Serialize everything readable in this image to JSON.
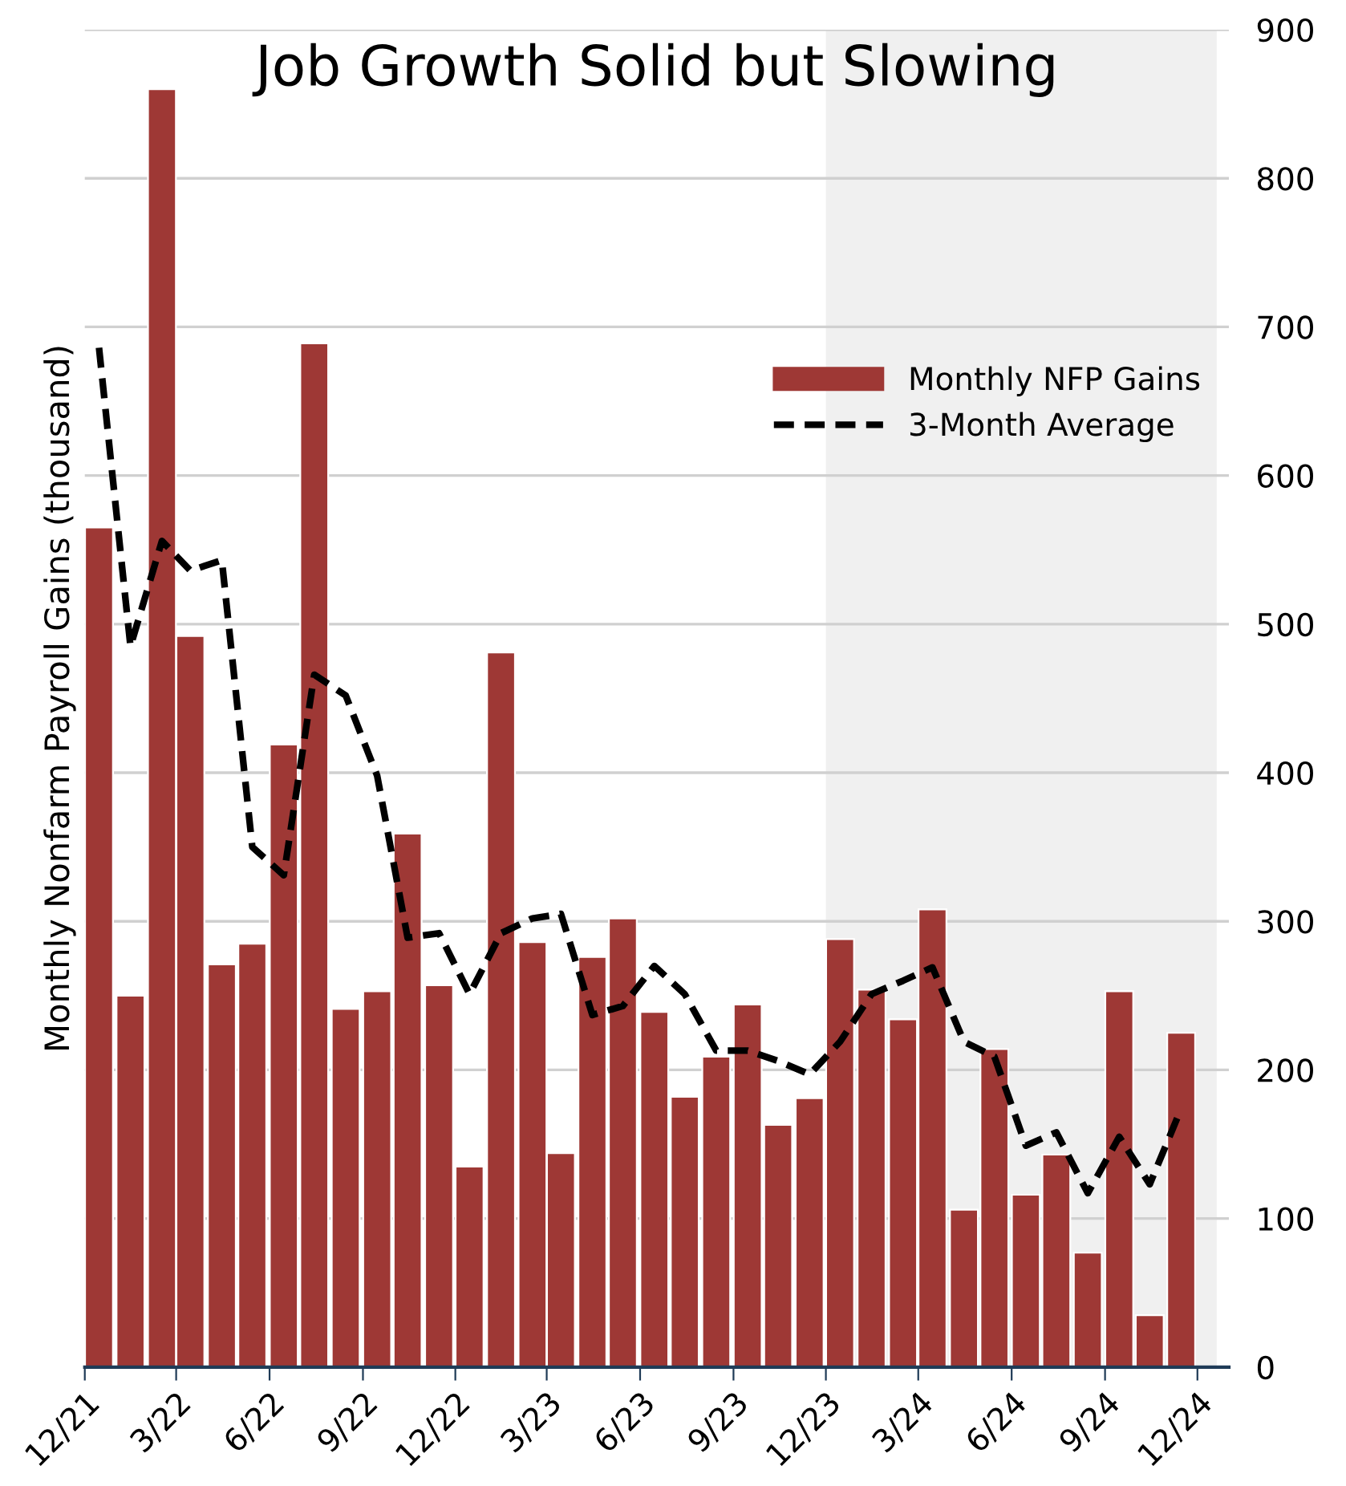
{
  "chart_data": {
    "type": "bar",
    "title": "Job Growth Solid but Slowing",
    "ylabel": "Monthly Nonfarm Payroll Gains (thousand)",
    "x": [
      "2021-12-15",
      "2022-01-15",
      "2022-02-15",
      "2022-03-15",
      "2022-04-15",
      "2022-05-15",
      "2022-06-15",
      "2022-07-15",
      "2022-08-15",
      "2022-09-15",
      "2022-10-15",
      "2022-11-15",
      "2022-12-15",
      "2023-01-15",
      "2023-02-15",
      "2023-03-15",
      "2023-04-15",
      "2023-05-15",
      "2023-06-15",
      "2023-07-15",
      "2023-08-15",
      "2023-09-15",
      "2023-10-15",
      "2023-11-15",
      "2023-12-15",
      "2024-01-15",
      "2024-02-15",
      "2024-03-15",
      "2024-04-15",
      "2024-05-15",
      "2024-06-15",
      "2024-07-15",
      "2024-08-15",
      "2024-09-15",
      "2024-10-15",
      "2024-11-15"
    ],
    "series": [
      {
        "name": "Monthly NFP Gains",
        "color": "#9e3835",
        "values": [
          565,
          250,
          860,
          492,
          271,
          285,
          419,
          689,
          241,
          253,
          359,
          257,
          135,
          481,
          286,
          144,
          276,
          302,
          239,
          182,
          209,
          244,
          163,
          181,
          288,
          254,
          234,
          308,
          106,
          214,
          116,
          143,
          77,
          253,
          35,
          225
        ]
      },
      {
        "name": "3-Month Average",
        "type": "line",
        "color": "#000000",
        "line_style": "dashed",
        "values": [
          686,
          485,
          556,
          536,
          543,
          350,
          331,
          466,
          452,
          398,
          289,
          292,
          251,
          292,
          302,
          305,
          237,
          243,
          270,
          251,
          213,
          213,
          206,
          197,
          219,
          251,
          260,
          269,
          219,
          209,
          149,
          158,
          117,
          155,
          123,
          174
        ]
      }
    ],
    "xlim": [
      "2021-12-01",
      "2025-01-01"
    ],
    "xticks": [
      {
        "value": "2021-12-01",
        "label": "12/21"
      },
      {
        "value": "2022-03-01",
        "label": "3/22"
      },
      {
        "value": "2022-06-01",
        "label": "6/22"
      },
      {
        "value": "2022-09-01",
        "label": "9/22"
      },
      {
        "value": "2022-12-01",
        "label": "12/22"
      },
      {
        "value": "2023-03-01",
        "label": "3/23"
      },
      {
        "value": "2023-06-01",
        "label": "6/23"
      },
      {
        "value": "2023-09-01",
        "label": "9/23"
      },
      {
        "value": "2023-12-01",
        "label": "12/23"
      },
      {
        "value": "2024-03-01",
        "label": "3/24"
      },
      {
        "value": "2024-06-01",
        "label": "6/24"
      },
      {
        "value": "2024-09-01",
        "label": "9/24"
      },
      {
        "value": "2024-12-01",
        "label": "12/24"
      }
    ],
    "ylim": [
      0,
      900
    ],
    "yticks": [
      0,
      100,
      200,
      300,
      400,
      500,
      600,
      700,
      800,
      900
    ],
    "bands": [
      {
        "axis": "x",
        "from": "2023-12-01",
        "to": "2024-12-20",
        "color": "#f0f0f0"
      }
    ],
    "grid": "y",
    "legend": "right"
  }
}
